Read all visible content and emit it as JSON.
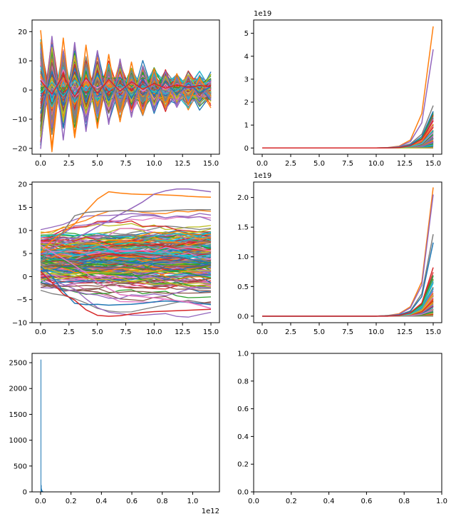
{
  "figure": {
    "palette": [
      "#1f77b4",
      "#ff7f0e",
      "#2ca02c",
      "#d62728",
      "#9467bd",
      "#8c564b",
      "#e377c2",
      "#7f7f7f",
      "#bcbd22",
      "#17becf"
    ],
    "axes_color": "#000000",
    "background": "#ffffff"
  },
  "chart_data": [
    {
      "id": "ax1",
      "type": "line",
      "description_series": "many oscillating trajectories converging toward zero",
      "xlim": [
        -0.75,
        15.75
      ],
      "ylim": [
        -22,
        24
      ],
      "xticks": [
        0,
        2.5,
        5,
        7.5,
        10,
        12.5,
        15
      ],
      "xtick_labels": [
        "0.0",
        "2.5",
        "5.0",
        "7.5",
        "10.0",
        "12.5",
        "15.0"
      ],
      "yticks": [
        -20,
        -10,
        0,
        10,
        20
      ],
      "ytick_labels": [
        "−20",
        "−10",
        "0",
        "10",
        "20"
      ],
      "offset_label": "",
      "x": [
        0,
        1,
        2,
        3,
        4,
        5,
        6,
        7,
        8,
        9,
        10,
        11,
        12,
        13,
        14,
        15
      ],
      "n_series": 150,
      "series": [
        {
          "values": [
            20.5,
            -19.5,
            17.8,
            -16.2,
            15.4,
            -13.1,
            12.2,
            -10.9,
            9.6,
            -8.4,
            7.3,
            -6.2,
            5.6,
            -4.8,
            4.2,
            -2.1
          ]
        },
        {
          "values": [
            -20.2,
            18.4,
            -17.1,
            16.3,
            -14.2,
            13.5,
            -11.8,
            10.6,
            -9.3,
            8.1,
            -7.2,
            6.4,
            -5.3,
            4.7,
            -3.6,
            3.1
          ]
        },
        {
          "values": [
            12.4,
            -10.1,
            9.5,
            -8.2,
            8.8,
            -6.9,
            6.2,
            -5.8,
            5.1,
            -4.3,
            4.0,
            -3.1,
            3.3,
            -2.2,
            2.6,
            -1.4
          ]
        },
        {
          "values": [
            -8.1,
            6.3,
            -5.2,
            7.4,
            -4.1,
            5.8,
            -3.7,
            4.4,
            -2.9,
            3.8,
            -2.1,
            3.0,
            -1.6,
            2.2,
            -0.9,
            1.1
          ]
        },
        {
          "values": [
            3.2,
            -1.4,
            5.1,
            -2.3,
            4.2,
            -1.1,
            3.6,
            -0.4,
            2.8,
            0.3,
            2.2,
            0.6,
            1.8,
            0.9,
            1.5,
            1.2
          ]
        }
      ]
    },
    {
      "id": "ax2",
      "type": "line",
      "xlim": [
        -0.75,
        15.75
      ],
      "ylim": [
        -0.27,
        5.58
      ],
      "xticks": [
        0,
        2.5,
        5,
        7.5,
        10,
        12.5,
        15
      ],
      "xtick_labels": [
        "0.0",
        "2.5",
        "5.0",
        "7.5",
        "10.0",
        "12.5",
        "15.0"
      ],
      "yticks": [
        0,
        1,
        2,
        3,
        4,
        5
      ],
      "ytick_labels": [
        "0",
        "1",
        "2",
        "3",
        "4",
        "5"
      ],
      "offset_label": "1e19",
      "x": [
        0,
        1,
        2,
        3,
        4,
        5,
        6,
        7,
        8,
        9,
        10,
        11,
        12,
        13,
        14,
        15
      ],
      "n_series": 150,
      "series": [
        {
          "values": [
            0,
            0,
            0,
            0,
            0,
            0,
            0,
            0,
            0,
            0,
            0,
            0.02,
            0.08,
            0.35,
            1.5,
            5.3
          ]
        },
        {
          "values": [
            0,
            0,
            0,
            0,
            0,
            0,
            0,
            0,
            0,
            0,
            0,
            0.01,
            0.06,
            0.28,
            1.1,
            4.3
          ]
        },
        {
          "values": [
            0,
            0,
            0,
            0,
            0,
            0,
            0,
            0,
            0,
            0,
            0,
            0.01,
            0.04,
            0.18,
            0.6,
            1.85
          ]
        },
        {
          "values": [
            0,
            0,
            0,
            0,
            0,
            0,
            0,
            0,
            0,
            0,
            0,
            0.01,
            0.03,
            0.14,
            0.5,
            1.6
          ]
        },
        {
          "values": [
            0,
            0,
            0,
            0,
            0,
            0,
            0,
            0,
            0,
            0,
            0,
            0,
            0.02,
            0.1,
            0.38,
            1.2
          ]
        }
      ]
    },
    {
      "id": "ax3",
      "type": "line",
      "xlim": [
        -0.75,
        15.75
      ],
      "ylim": [
        -10,
        20.5
      ],
      "xticks": [
        0,
        2.5,
        5,
        7.5,
        10,
        12.5,
        15
      ],
      "xtick_labels": [
        "0.0",
        "2.5",
        "5.0",
        "7.5",
        "10.0",
        "12.5",
        "15.0"
      ],
      "yticks": [
        -10,
        -5,
        0,
        5,
        10,
        15,
        20
      ],
      "ytick_labels": [
        "−10",
        "−5",
        "0",
        "5",
        "10",
        "15",
        "20"
      ],
      "offset_label": "",
      "x": [
        0,
        1,
        2,
        3,
        4,
        5,
        6,
        7,
        8,
        9,
        10,
        11,
        12,
        13,
        14,
        15
      ],
      "n_series": 200,
      "series": [
        {
          "values": [
            5.2,
            7.8,
            9.6,
            11.4,
            14.2,
            16.8,
            18.4,
            18.1,
            17.9,
            17.8,
            17.8,
            17.7,
            17.6,
            17.4,
            17.3,
            17.2
          ]
        },
        {
          "values": [
            4.8,
            6.1,
            7.3,
            8.2,
            9.4,
            10.8,
            12.1,
            13.5,
            14.8,
            16.2,
            17.9,
            18.6,
            19.0,
            19.0,
            18.7,
            18.4
          ]
        },
        {
          "values": [
            3.1,
            6.4,
            9.8,
            13.2,
            13.9,
            14.1,
            14.2,
            14.3,
            14.2,
            14.1,
            14.2,
            14.3,
            14.4,
            14.5,
            14.5,
            14.5
          ]
        },
        {
          "values": [
            2.2,
            0.1,
            -3.2,
            -5.8,
            -6.1,
            -6.0,
            -6.2,
            -6.1,
            -6.0,
            -5.8,
            -5.5,
            -5.3,
            -5.4,
            -5.6,
            -5.8,
            -6.1
          ]
        },
        {
          "values": [
            1.1,
            -1.3,
            -3.8,
            -5.1,
            -7.2,
            -8.4,
            -8.6,
            -8.5,
            -8.1,
            -7.8,
            -7.6,
            -7.5,
            -7.4,
            -7.3,
            -7.2,
            -7.1
          ]
        },
        {
          "values": [
            6.8,
            5.3,
            3.9,
            2.4,
            0.8,
            -1.2,
            -2.6,
            -3.9,
            -4.2,
            -4.4,
            -4.6,
            -4.9,
            -5.2,
            -5.6,
            -6.2,
            -6.9
          ]
        }
      ]
    },
    {
      "id": "ax4",
      "type": "line",
      "xlim": [
        -0.75,
        15.75
      ],
      "ylim": [
        -0.11,
        2.26
      ],
      "xticks": [
        0,
        2.5,
        5,
        7.5,
        10,
        12.5,
        15
      ],
      "xtick_labels": [
        "0.0",
        "2.5",
        "5.0",
        "7.5",
        "10.0",
        "12.5",
        "15.0"
      ],
      "yticks": [
        0,
        0.5,
        1.0,
        1.5,
        2.0
      ],
      "ytick_labels": [
        "0.0",
        "0.5",
        "1.0",
        "1.5",
        "2.0"
      ],
      "offset_label": "1e19",
      "x": [
        0,
        1,
        2,
        3,
        4,
        5,
        6,
        7,
        8,
        9,
        10,
        11,
        12,
        13,
        14,
        15
      ],
      "n_series": 150,
      "series": [
        {
          "values": [
            0,
            0,
            0,
            0,
            0,
            0,
            0,
            0,
            0,
            0,
            0,
            0.01,
            0.04,
            0.16,
            0.58,
            2.17
          ]
        },
        {
          "values": [
            0,
            0,
            0,
            0,
            0,
            0,
            0,
            0,
            0,
            0,
            0,
            0.01,
            0.03,
            0.14,
            0.52,
            2.05
          ]
        },
        {
          "values": [
            0,
            0,
            0,
            0,
            0,
            0,
            0,
            0,
            0,
            0,
            0,
            0.01,
            0.02,
            0.09,
            0.38,
            1.38
          ]
        },
        {
          "values": [
            0,
            0,
            0,
            0,
            0,
            0,
            0,
            0,
            0,
            0,
            0,
            0,
            0.02,
            0.08,
            0.33,
            1.24
          ]
        },
        {
          "values": [
            0,
            0,
            0,
            0,
            0,
            0,
            0,
            0,
            0,
            0,
            0,
            0,
            0.01,
            0.06,
            0.22,
            0.82
          ]
        }
      ]
    },
    {
      "id": "ax5",
      "type": "bar",
      "histogram": true,
      "xlim": [
        -0.056,
        1.176
      ],
      "ylim": [
        0,
        2680
      ],
      "xticks": [
        0,
        0.2,
        0.4,
        0.6,
        0.8,
        1.0
      ],
      "xtick_labels": [
        "0.0",
        "0.2",
        "0.4",
        "0.6",
        "0.8",
        "1.0"
      ],
      "yticks": [
        0,
        500,
        1000,
        1500,
        2000,
        2500
      ],
      "ytick_labels": [
        "0",
        "500",
        "1000",
        "1500",
        "2000",
        "2500"
      ],
      "offset_label_x": "1e12",
      "bins": [
        {
          "x": 0.0,
          "w": 0.0022,
          "count": 2560
        },
        {
          "x": 0.0022,
          "w": 0.0022,
          "count": 130
        },
        {
          "x": 0.0044,
          "w": 0.0022,
          "count": 60
        },
        {
          "x": 0.0066,
          "w": 0.0022,
          "count": 35
        },
        {
          "x": 0.0088,
          "w": 0.0022,
          "count": 22
        },
        {
          "x": 0.011,
          "w": 0.0022,
          "count": 15
        },
        {
          "x": 0.0132,
          "w": 0.0022,
          "count": 10
        },
        {
          "x": 0.02,
          "w": 0.0022,
          "count": 6
        },
        {
          "x": 0.03,
          "w": 0.0022,
          "count": 4
        },
        {
          "x": 0.05,
          "w": 0.0022,
          "count": 3
        },
        {
          "x": 0.08,
          "w": 0.0022,
          "count": 2
        },
        {
          "x": 0.12,
          "w": 0.0022,
          "count": 1
        },
        {
          "x": 0.2,
          "w": 0.0022,
          "count": 1
        },
        {
          "x": 1.12,
          "w": 0.0022,
          "count": 1
        }
      ]
    },
    {
      "id": "ax6",
      "type": "line",
      "empty": true,
      "xlim": [
        0,
        1
      ],
      "ylim": [
        0,
        1
      ],
      "xticks": [
        0,
        0.2,
        0.4,
        0.6,
        0.8,
        1.0
      ],
      "xtick_labels": [
        "0.0",
        "0.2",
        "0.4",
        "0.6",
        "0.8",
        "1.0"
      ],
      "yticks": [
        0,
        0.2,
        0.4,
        0.6,
        0.8,
        1.0
      ],
      "ytick_labels": [
        "0.0",
        "0.2",
        "0.4",
        "0.6",
        "0.8",
        "1.0"
      ],
      "offset_label": ""
    }
  ]
}
